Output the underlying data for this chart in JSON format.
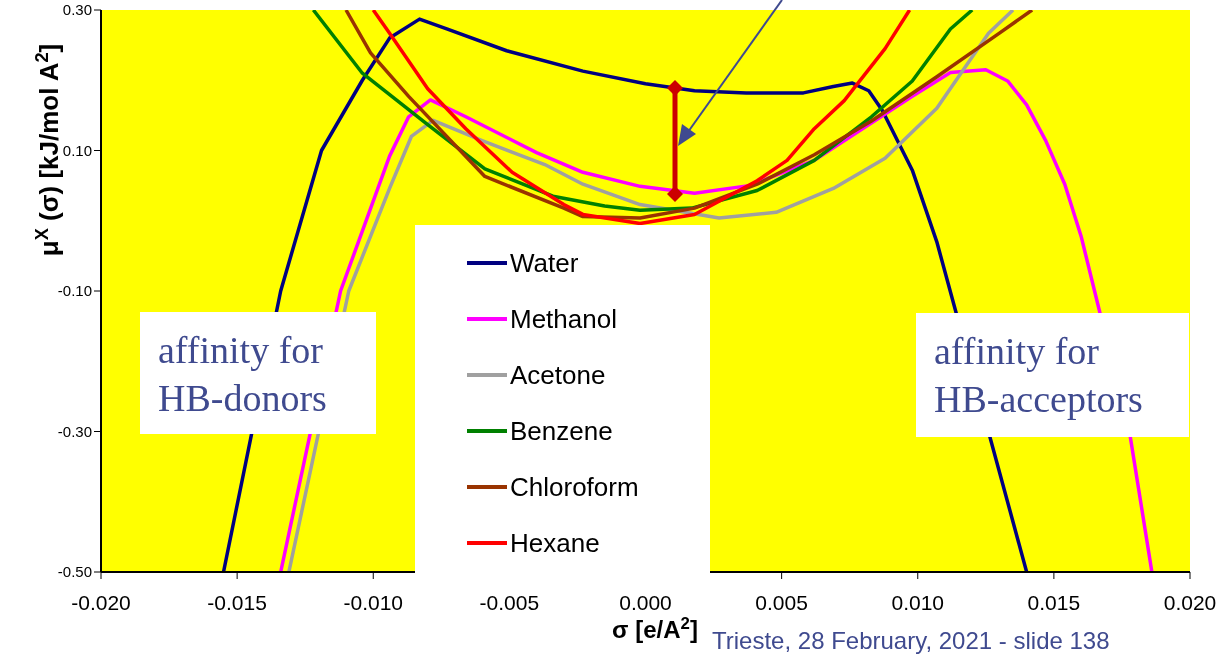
{
  "chart_data": {
    "type": "line",
    "xlabel": "σ [e/A$^{2}$]",
    "ylabel": "μ$^{X}$ (σ) [kJ/mol A$^{2}$]",
    "annotations": [
      "affinity for HB-donors",
      "affinity for HB-acceptors",
      "Trieste, 28 February, 2021 - slide 138"
    ],
    "xlim": [
      -0.02,
      0.02
    ],
    "xticks": [
      {
        "value": -0.02,
        "label": "-0.020"
      },
      {
        "value": -0.015,
        "label": "-0.015"
      },
      {
        "value": -0.01,
        "label": "-0.010"
      },
      {
        "value": -0.005,
        "label": "-0.005"
      },
      {
        "value": 0,
        "label": "0.000"
      },
      {
        "value": 0.005,
        "label": "0.005"
      },
      {
        "value": 0.01,
        "label": "0.010"
      },
      {
        "value": 0.015,
        "label": "0.015"
      },
      {
        "value": 0.02,
        "label": "0.020"
      }
    ],
    "ylim": [
      -0.5,
      0.3
    ],
    "yticks": [
      {
        "value": -0.5,
        "label": "-0.50"
      },
      {
        "value": -0.3,
        "label": "-0.30"
      },
      {
        "value": -0.1,
        "label": "-0.10"
      },
      {
        "value": 0.1,
        "label": "0.10"
      },
      {
        "value": 0.3,
        "label": "0.30"
      }
    ],
    "grid": false,
    "legend": "bottom",
    "marker": "none",
    "line_style": "solid",
    "series": [
      {
        "name": "Water",
        "color": "#000080",
        "x": [
          -0.0155,
          -0.0134,
          -0.0119,
          -0.0104,
          -0.0094,
          -0.0083,
          -0.0073,
          -0.0051,
          -0.0023,
          0,
          0.0018,
          0.0037,
          0.0058,
          0.0069,
          0.0076,
          0.0082,
          0.0087,
          0.0098,
          0.0107,
          0.014
        ],
        "values": [
          -0.5,
          -0.1,
          0.1,
          0.2,
          0.26,
          0.287,
          0.273,
          0.242,
          0.213,
          0.195,
          0.185,
          0.182,
          0.182,
          0.191,
          0.196,
          0.185,
          0.157,
          0.072,
          -0.03,
          -0.5
        ]
      },
      {
        "name": "Methanol",
        "color": "#ff00ff",
        "x": [
          -0.0134,
          -0.0112,
          -0.0094,
          -0.0087,
          -0.0079,
          -0.0066,
          -0.004,
          -0.0023,
          -0.0002,
          0.0018,
          0.0038,
          0.0062,
          0.0098,
          0.0112,
          0.0125,
          0.0133,
          0.014,
          0.0147,
          0.0154,
          0.016,
          0.0178,
          0.0186
        ],
        "values": [
          -0.5,
          -0.1,
          0.092,
          0.148,
          0.172,
          0.148,
          0.097,
          0.069,
          0.049,
          0.039,
          0.05,
          0.086,
          0.177,
          0.211,
          0.215,
          0.199,
          0.165,
          0.114,
          0.052,
          -0.022,
          -0.306,
          -0.5
        ]
      },
      {
        "name": "Acetone",
        "color": "#a0a0a0",
        "x": [
          -0.0131,
          -0.0109,
          -0.0094,
          -0.0086,
          -0.0078,
          -0.006,
          -0.0037,
          -0.0023,
          -0.0002,
          0.0027,
          0.0048,
          0.0069,
          0.0088,
          0.0107,
          0.0126,
          0.0135
        ],
        "values": [
          -0.5,
          -0.1,
          0.046,
          0.12,
          0.143,
          0.114,
          0.08,
          0.052,
          0.023,
          0.004,
          0.012,
          0.046,
          0.089,
          0.16,
          0.267,
          0.3
        ]
      },
      {
        "name": "Benzene",
        "color": "#008000",
        "x": [
          -0.0122,
          -0.0104,
          -0.008,
          -0.0059,
          -0.0034,
          -0.0015,
          -0.0002,
          0.0017,
          0.0041,
          0.0062,
          0.0083,
          0.0098,
          0.0112,
          0.012
        ],
        "values": [
          0.3,
          0.21,
          0.137,
          0.074,
          0.035,
          0.021,
          0.015,
          0.018,
          0.043,
          0.086,
          0.148,
          0.199,
          0.273,
          0.3
        ]
      },
      {
        "name": "Chloroform",
        "color": "#993300",
        "x": [
          -0.011,
          -0.0101,
          -0.0087,
          -0.0059,
          -0.003,
          -0.0023,
          -0.0002,
          0.0018,
          0.0041,
          0.0062,
          0.0083,
          0.0107,
          0.013,
          0.0142
        ],
        "values": [
          0.3,
          0.239,
          0.177,
          0.063,
          0.018,
          0.006,
          0.004,
          0.018,
          0.052,
          0.094,
          0.142,
          0.205,
          0.267,
          0.3
        ]
      },
      {
        "name": "Hexane",
        "color": "#ff0000",
        "x": [
          -0.01,
          -0.0094,
          -0.008,
          -0.0066,
          -0.0049,
          -0.003,
          -0.0023,
          -0.0002,
          0.0018,
          0.0041,
          0.0052,
          0.0062,
          0.0073,
          0.0088,
          0.0097
        ],
        "values": [
          0.3,
          0.267,
          0.188,
          0.131,
          0.069,
          0.023,
          0.009,
          -0.004,
          0.009,
          0.057,
          0.086,
          0.131,
          0.171,
          0.245,
          0.3
        ]
      }
    ]
  }
}
